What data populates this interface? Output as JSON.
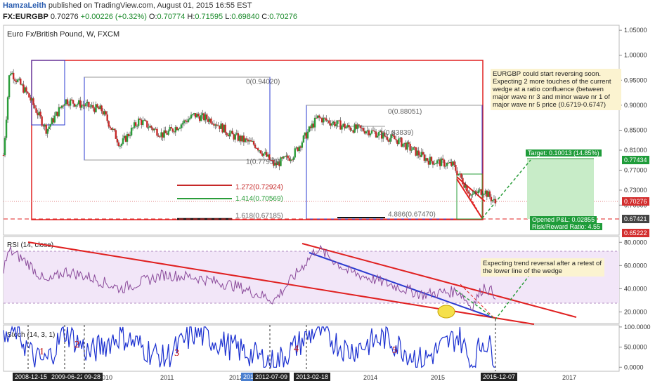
{
  "header": {
    "author": "HamzaLeith",
    "published_text": "published on TradingView.com, August 01, 2015 16:55 EST",
    "symbol": "FX:EURGBP",
    "price": "0.70276",
    "change": "+0.00226 (+0.32%)",
    "o_label": "O:",
    "o_value": "0.70774",
    "h_label": "H:",
    "h_value": "0.71595",
    "l_label": "L:",
    "l_value": "0.69840",
    "c_label": "C:",
    "c_value": "0.70276"
  },
  "colors": {
    "candle_up": "#2a9d3a",
    "candle_down": "#c62828",
    "wedge": "#e02020",
    "target_zone": "#c8ecc8",
    "rsi_band": "#f2e6f8"
  },
  "panels": {
    "main_title": "Euro Fx/British Pound, W, FXCM",
    "rsi_title": "RSI (14, close)",
    "stoch_title": "Stoch (14, 3, 1)"
  },
  "notes": {
    "main": "EURGBP could start reversing soon. Expecting 2 more touches of the current wedge at a ratio confluence (between major wave nr 3 and minor wave nr 1 of major wave nr 5 price (0.6719-0.6747)",
    "rsi": "Expecting trend reversal after a retest of the lower line of the wedge"
  },
  "fib_labels": [
    {
      "text": "0(0.94020)",
      "price": 0.9402
    },
    {
      "text": "1(0.77955)",
      "price": 0.7796
    },
    {
      "text": "0(0.88051)",
      "price": 0.8805
    },
    {
      "text": "1(0.83839)",
      "price": 0.8384
    },
    {
      "text": "1.272(0.72924)",
      "price": 0.7292
    },
    {
      "text": "1.414(0.70569)",
      "price": 0.7057
    },
    {
      "text": "1.618(0.67185)",
      "price": 0.6719
    },
    {
      "text": "4.886(0.67470)",
      "price": 0.6747
    }
  ],
  "trade": {
    "target_label": "Target: 0.10013 (14.85%)",
    "pnl_label": "Opened P&L: 0.02855",
    "rr_label": "Risk/Reward Ratio: 4.55"
  },
  "price_tags": [
    {
      "text": "0.77434",
      "color": "#1f9c3a",
      "price": 0.7743
    },
    {
      "text": "0.70276",
      "color": "#d32f2f",
      "price": 0.7028
    },
    {
      "text": "0.67421",
      "color": "#444444",
      "price": 0.6742
    },
    {
      "text": "0.65222",
      "color": "#d32f2f",
      "price": 0.6522
    }
  ],
  "waves": [
    "1",
    "2",
    "3",
    "4",
    "5"
  ],
  "x_ticks": [
    "2010",
    "2011",
    "2012",
    "2014",
    "2015",
    "2017"
  ],
  "x_tags": [
    "2008-12-15",
    "2009-06-22",
    "09-28",
    "201",
    "2012-07-09",
    "2013-02-18",
    "2015-12-07"
  ],
  "chart_data": {
    "type": "candlestick",
    "title": "Euro Fx/British Pound, W, FXCM",
    "symbol": "FX:EURGBP",
    "timeframe": "W",
    "x_range": [
      "2008-11",
      "2017-03"
    ],
    "ylim": [
      0.64,
      1.06
    ],
    "y_ticks": [
      "1.05000",
      "1.00000",
      "0.95000",
      "0.90000",
      "0.85000",
      "0.81000",
      "0.77000",
      "0.73000",
      "0.70000"
    ],
    "price_path": [
      [
        "2008-11",
        0.8
      ],
      [
        "2008-12",
        0.97
      ],
      [
        "2009-03",
        0.92
      ],
      [
        "2009-06",
        0.85
      ],
      [
        "2009-09",
        0.91
      ],
      [
        "2009-12",
        0.9
      ],
      [
        "2010-03",
        0.89
      ],
      [
        "2010-06",
        0.82
      ],
      [
        "2010-09",
        0.87
      ],
      [
        "2011-01",
        0.84
      ],
      [
        "2011-06",
        0.88
      ],
      [
        "2011-09",
        0.87
      ],
      [
        "2011-12",
        0.84
      ],
      [
        "2012-04",
        0.82
      ],
      [
        "2012-07",
        0.78
      ],
      [
        "2012-10",
        0.8
      ],
      [
        "2013-02",
        0.875
      ],
      [
        "2013-07",
        0.855
      ],
      [
        "2013-10",
        0.85
      ],
      [
        "2014-03",
        0.83
      ],
      [
        "2014-08",
        0.79
      ],
      [
        "2014-12",
        0.78
      ],
      [
        "2015-03",
        0.72
      ],
      [
        "2015-05",
        0.73
      ],
      [
        "2015-07",
        0.7028
      ]
    ],
    "rsi": {
      "ylim": [
        10,
        85
      ],
      "y_ticks": [
        "80.0000",
        "60.0000",
        "40.0000",
        "20.0000"
      ],
      "path": [
        [
          "2008-11",
          58
        ],
        [
          "2008-12",
          73
        ],
        [
          "2009-03",
          62
        ],
        [
          "2009-06",
          45
        ],
        [
          "2009-09",
          55
        ],
        [
          "2010-01",
          50
        ],
        [
          "2010-06",
          40
        ],
        [
          "2011-01",
          52
        ],
        [
          "2011-06",
          50
        ],
        [
          "2012-01",
          42
        ],
        [
          "2012-07",
          30
        ],
        [
          "2013-02",
          75
        ],
        [
          "2013-07",
          55
        ],
        [
          "2014-01",
          45
        ],
        [
          "2014-07",
          35
        ],
        [
          "2015-01",
          38
        ],
        [
          "2015-03",
          24
        ],
        [
          "2015-05",
          42
        ],
        [
          "2015-07",
          35
        ]
      ]
    },
    "stoch": {
      "ylim": [
        -10,
        105
      ],
      "y_ticks": [
        "100.0000",
        "50.0000",
        "0.0000"
      ],
      "path": [
        [
          "2008-11",
          60
        ],
        [
          "2009-01",
          95
        ],
        [
          "2009-04",
          20
        ],
        [
          "2009-06",
          15
        ],
        [
          "2009-09",
          90
        ],
        [
          "2010-01",
          35
        ],
        [
          "2010-06",
          80
        ],
        [
          "2011-01",
          20
        ],
        [
          "2011-06",
          85
        ],
        [
          "2012-01",
          45
        ],
        [
          "2012-07",
          10
        ],
        [
          "2013-02",
          95
        ],
        [
          "2013-07",
          40
        ],
        [
          "2014-01",
          75
        ],
        [
          "2014-07",
          15
        ],
        [
          "2015-01",
          80
        ],
        [
          "2015-03",
          5
        ],
        [
          "2015-05",
          70
        ],
        [
          "2015-07",
          25
        ]
      ]
    }
  }
}
